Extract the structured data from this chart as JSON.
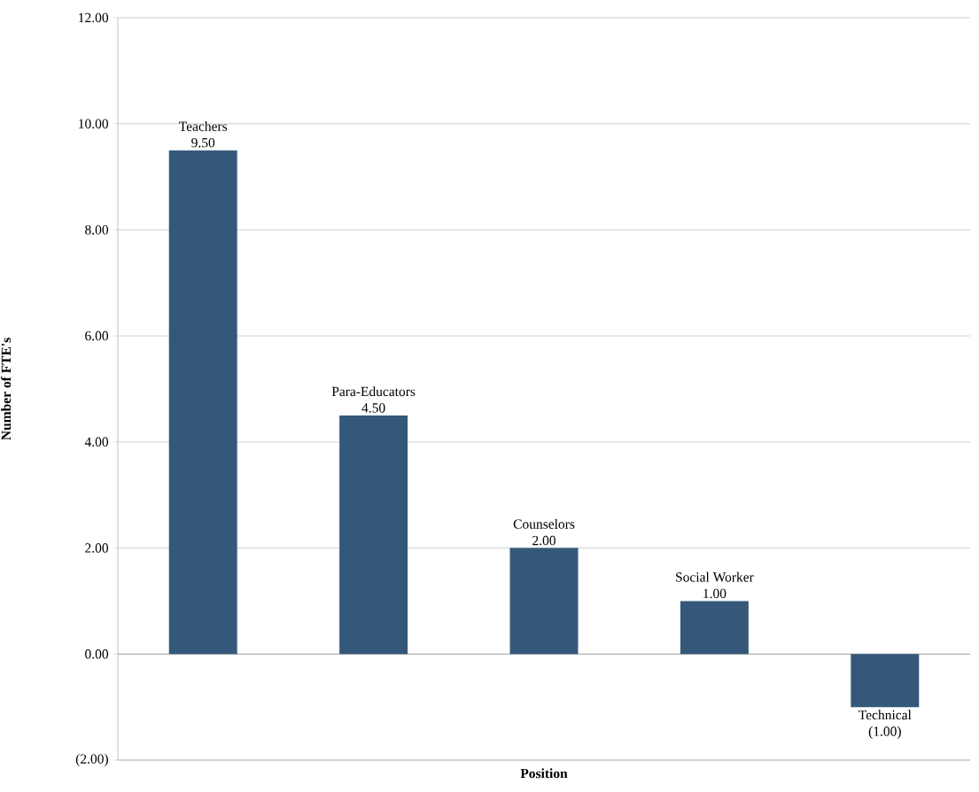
{
  "chart_data": {
    "type": "bar",
    "xlabel": "Position",
    "ylabel": "Number of FTE's",
    "categories": [
      "Teachers",
      "Para-Educators",
      "Counselors",
      "Social Worker",
      "Technical"
    ],
    "values": [
      9.5,
      4.5,
      2.0,
      1.0,
      -1.0
    ],
    "value_labels": [
      "9.50",
      "4.50",
      "2.00",
      "1.00",
      "(1.00)"
    ],
    "color": "#35587a",
    "ylim": [
      -2,
      12
    ],
    "yticks": [
      {
        "value": -2,
        "label": "(2.00)"
      },
      {
        "value": 0,
        "label": "0.00"
      },
      {
        "value": 2,
        "label": "2.00"
      },
      {
        "value": 4,
        "label": "4.00"
      },
      {
        "value": 6,
        "label": "6.00"
      },
      {
        "value": 8,
        "label": "8.00"
      },
      {
        "value": 10,
        "label": "10.00"
      },
      {
        "value": 12,
        "label": "12.00"
      }
    ],
    "grid": "y"
  }
}
